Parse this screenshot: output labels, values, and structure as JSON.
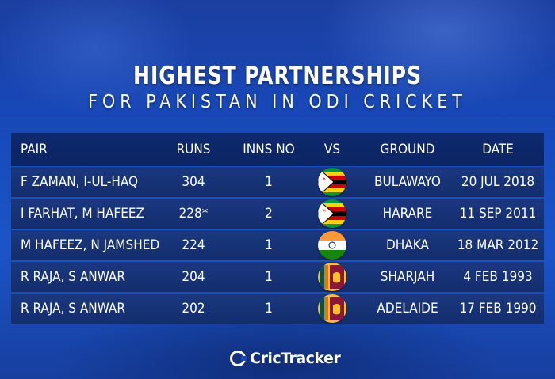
{
  "title": {
    "line1": "HIGHEST PARTNERSHIPS",
    "line2": "FOR PAKISTAN IN ODI CRICKET"
  },
  "table": {
    "headers": {
      "pair": "PAIR",
      "runs": "RUNS",
      "inns_no": "INNS NO",
      "vs": "VS",
      "ground": "GROUND",
      "date": "DATE"
    },
    "rows": [
      {
        "pair": "F ZAMAN, I-UL-HAQ",
        "runs": "304",
        "inns_no": "1",
        "vs_flag": "zimbabwe-flag-icon",
        "ground": "BULAWAYO",
        "date": "20 JUL 2018"
      },
      {
        "pair": "I FARHAT, M HAFEEZ",
        "runs": "228*",
        "inns_no": "2",
        "vs_flag": "zimbabwe-flag-icon",
        "ground": "HARARE",
        "date": "11 SEP 2011"
      },
      {
        "pair": "M HAFEEZ, N JAMSHED",
        "runs": "224",
        "inns_no": "1",
        "vs_flag": "india-flag-icon",
        "ground": "DHAKA",
        "date": "18 MAR 2012"
      },
      {
        "pair": "R RAJA, S ANWAR",
        "runs": "204",
        "inns_no": "1",
        "vs_flag": "sri-lanka-flag-icon",
        "ground": "SHARJAH",
        "date": "4 FEB 1993"
      },
      {
        "pair": "R RAJA, S ANWAR",
        "runs": "202",
        "inns_no": "1",
        "vs_flag": "sri-lanka-flag-icon",
        "ground": "ADELAIDE",
        "date": "17 FEB 1990"
      }
    ]
  },
  "brand": {
    "name": "CricTracker"
  },
  "colors": {
    "background": "#1a4ab8",
    "header_bg": "#0e2a6e",
    "row_bg": "#1b3880",
    "text": "#ffffff"
  }
}
